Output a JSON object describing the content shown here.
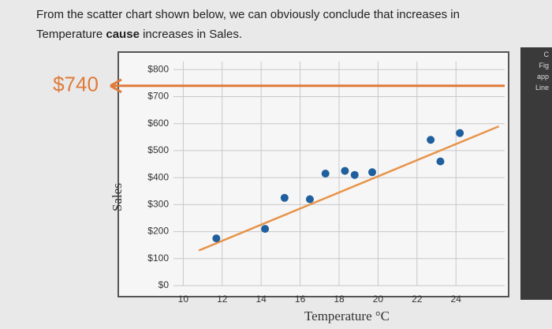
{
  "question_parts": [
    "From the scatter chart shown below, we can obviously conclude that increases in Temperature ",
    "cause",
    " increases in Sales."
  ],
  "sidebar": [
    "C",
    "Fig",
    "app",
    "Line"
  ],
  "chart_data": {
    "type": "scatter",
    "xlabel": "Temperature °C",
    "ylabel": "Sales",
    "xlim": [
      9.5,
      26.5
    ],
    "ylim": [
      0,
      830
    ],
    "xticks": [
      10,
      12,
      14,
      16,
      18,
      20,
      22,
      24
    ],
    "yticks": [
      {
        "value": 0,
        "label": "$0"
      },
      {
        "value": 100,
        "label": "$100"
      },
      {
        "value": 200,
        "label": "$200"
      },
      {
        "value": 300,
        "label": "$300"
      },
      {
        "value": 400,
        "label": "$400"
      },
      {
        "value": 500,
        "label": "$500"
      },
      {
        "value": 600,
        "label": "$600"
      },
      {
        "value": 700,
        "label": "$700"
      },
      {
        "value": 800,
        "label": "$800"
      }
    ],
    "grid": true,
    "series": [
      {
        "color": "#1f5f9e",
        "x": [
          11.7,
          14.2,
          15.2,
          16.5,
          17.3,
          18.3,
          18.8,
          19.7,
          22.7,
          23.2,
          24.2
        ],
        "values": [
          175,
          210,
          325,
          320,
          415,
          425,
          410,
          420,
          540,
          460,
          565
        ]
      }
    ],
    "trendline": {
      "color": "#e8944a",
      "x": [
        10.8,
        26.2
      ],
      "values": [
        130,
        590
      ]
    },
    "annotation": {
      "value": 740,
      "label": "$740",
      "color": "#e07a3a"
    }
  }
}
